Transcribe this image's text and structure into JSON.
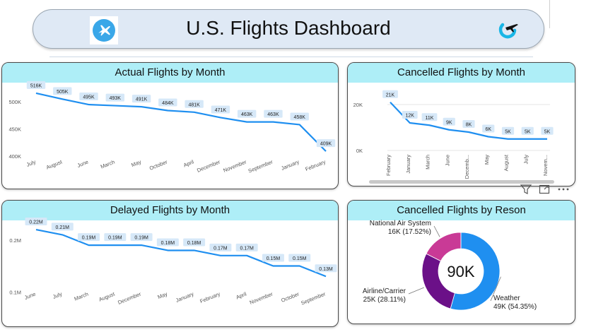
{
  "header": {
    "title": "U.S. Flights Dashboard",
    "left_logo": "airplane-logo-icon",
    "right_logo": "airplane-circle-logo-icon"
  },
  "colors": {
    "line": "#1f8ff0",
    "label_bg": "#d6e8f8",
    "title_bg": "#aeeef7",
    "donut_weather": "#1f8ff0",
    "donut_airline": "#6b1088",
    "donut_nas": "#c93a96"
  },
  "visual_header_icons": [
    "filter-icon",
    "focus-mode-icon",
    "more-options-icon"
  ],
  "chart_data": [
    {
      "id": "actual",
      "type": "line",
      "title": "Actual Flights by Month",
      "categories": [
        "July",
        "August",
        "June",
        "March",
        "May",
        "October",
        "April",
        "December",
        "November",
        "September",
        "January",
        "February"
      ],
      "values": [
        516000,
        505000,
        495000,
        493000,
        491000,
        484000,
        481000,
        471000,
        463000,
        463000,
        458000,
        409000
      ],
      "data_labels": [
        "516K",
        "505K",
        "495K",
        "493K",
        "491K",
        "484K",
        "481K",
        "471K",
        "463K",
        "463K",
        "458K",
        "409K"
      ],
      "yticks": [
        400000,
        450000,
        500000
      ],
      "ytick_labels": [
        "400K",
        "450K",
        "500K"
      ],
      "ylim": [
        400000,
        525000
      ],
      "grid": false
    },
    {
      "id": "cancelled",
      "type": "line",
      "title": "Cancelled Flights by Month",
      "categories": [
        "February",
        "January",
        "March",
        "June",
        "Decemb...",
        "May",
        "August",
        "July",
        "Novem..."
      ],
      "values": [
        21000,
        12000,
        11000,
        9000,
        8000,
        6000,
        5000,
        5000,
        5000
      ],
      "data_labels": [
        "21K",
        "12K",
        "11K",
        "9K",
        "8K",
        "6K",
        "5K",
        "5K",
        "5K"
      ],
      "yticks": [
        0,
        20000
      ],
      "ytick_labels": [
        "0K",
        "20K"
      ],
      "ylim": [
        0,
        24000
      ],
      "grid": true,
      "scrollbar": true
    },
    {
      "id": "delayed",
      "type": "line",
      "title": "Delayed Flights by Month",
      "categories": [
        "June",
        "July",
        "March",
        "August",
        "December",
        "May",
        "January",
        "February",
        "April",
        "November",
        "October",
        "September"
      ],
      "values": [
        0.22,
        0.21,
        0.19,
        0.19,
        0.19,
        0.18,
        0.18,
        0.17,
        0.17,
        0.15,
        0.15,
        0.13
      ],
      "data_labels": [
        "0.22M",
        "0.21M",
        "0.19M",
        "0.19M",
        "0.19M",
        "0.18M",
        "0.18M",
        "0.17M",
        "0.17M",
        "0.15M",
        "0.15M",
        "0.13M"
      ],
      "yticks": [
        0.1,
        0.2
      ],
      "ytick_labels": [
        "0.1M",
        "0.2M"
      ],
      "ylim": [
        0.095,
        0.235
      ],
      "grid": false
    },
    {
      "id": "reason",
      "type": "pie",
      "title": "Cancelled Flights by Reson",
      "center_label": "90K",
      "slices": [
        {
          "name": "Weather",
          "value": 49000,
          "label": "Weather",
          "detail": "49K (54.35%)"
        },
        {
          "name": "Airline/Carrier",
          "value": 25000,
          "label": "Airline/Carrier",
          "detail": "25K (28.11%)"
        },
        {
          "name": "National Air System",
          "value": 16000,
          "label": "National Air System",
          "detail": "16K (17.52%)"
        }
      ],
      "percentages": [
        54.35,
        28.11,
        17.52
      ]
    }
  ]
}
